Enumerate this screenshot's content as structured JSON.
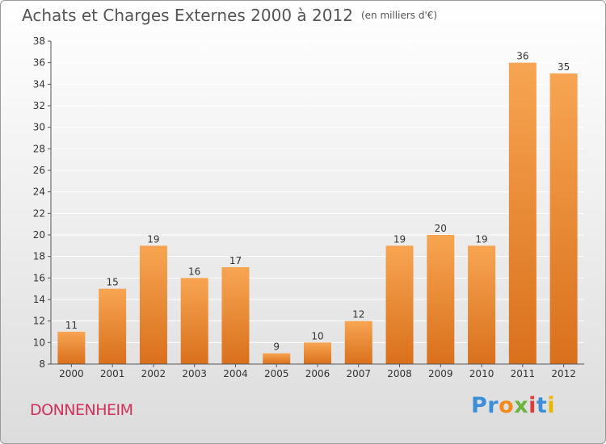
{
  "header": {
    "title": "Achats et Charges Externes 2000 à 2012",
    "unit": "(en milliers d'€)"
  },
  "footer": {
    "commune": "DONNENHEIM",
    "brand_letters": [
      {
        "ch": "P",
        "color": "#3b8fd8"
      },
      {
        "ch": "r",
        "color": "#3b8fd8"
      },
      {
        "ch": "o",
        "color": "#f28a1c"
      },
      {
        "ch": "x",
        "color": "#6cb33f"
      },
      {
        "ch": "i",
        "color": "#e03c3c"
      },
      {
        "ch": "t",
        "color": "#3b8fd8"
      },
      {
        "ch": "i",
        "color": "#e9b600"
      }
    ]
  },
  "colors": {
    "bar_light": "#f7a552",
    "bar_dark": "#d9701c",
    "axis": "#555555",
    "grid": "#ffffff"
  },
  "chart_data": {
    "type": "bar",
    "title": "Achats et Charges Externes 2000 à 2012",
    "subtitle": "(en milliers d'€)",
    "xlabel": "",
    "ylabel": "",
    "categories": [
      "2000",
      "2001",
      "2002",
      "2003",
      "2004",
      "2005",
      "2006",
      "2007",
      "2008",
      "2009",
      "2010",
      "2011",
      "2012"
    ],
    "values": [
      11,
      15,
      19,
      16,
      17,
      9,
      10,
      12,
      19,
      20,
      19,
      36,
      35
    ],
    "ylim": [
      8,
      38
    ],
    "yticks": [
      8,
      10,
      12,
      14,
      16,
      18,
      20,
      22,
      24,
      26,
      28,
      30,
      32,
      34,
      36,
      38
    ],
    "grid": true,
    "data_labels": true
  }
}
